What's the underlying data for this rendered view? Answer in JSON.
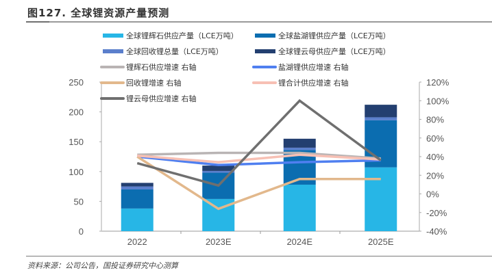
{
  "header": {
    "title": "图127. 全球锂资源产量预测"
  },
  "footer": {
    "source": "资料来源：公司公告，国投证券研究中心测算"
  },
  "chart_data": {
    "type": "bar",
    "title": "图127. 全球锂资源产量预测",
    "categories": [
      "2022",
      "2023E",
      "2024E",
      "2025E"
    ],
    "stacked": true,
    "ylabel": "",
    "ylim": [
      0,
      250
    ],
    "yticks": [
      0,
      50,
      100,
      150,
      200,
      250
    ],
    "y2lim": [
      -40,
      120
    ],
    "y2ticks": [
      "-40%",
      "-20%",
      "0%",
      "20%",
      "40%",
      "60%",
      "80%",
      "100%",
      "120%"
    ],
    "y2tick_values": [
      -40,
      -20,
      0,
      20,
      40,
      60,
      80,
      100,
      120
    ],
    "grid": false,
    "legend_position": "top",
    "bar_series": [
      {
        "name": "全球锂辉石供应产量（LCE万吨）",
        "color": "#27b6e6",
        "values": [
          38,
          54,
          78,
          107
        ]
      },
      {
        "name": "全球盐湖锂供应产量（LCE万吨）",
        "color": "#0b6db0",
        "values": [
          32,
          44,
          58,
          79
        ]
      },
      {
        "name": "全球回收锂总量（LCE万吨）",
        "color": "#5b7fcc",
        "values": [
          5,
          3,
          4,
          5
        ]
      },
      {
        "name": "全球锂云母供应产量（LCE万吨）",
        "color": "#233f70",
        "values": [
          6,
          9,
          15,
          21
        ]
      }
    ],
    "line_series": [
      {
        "name": "锂辉石供应增速 右轴",
        "color": "#b9b4b4",
        "axis": "right",
        "values": [
          42,
          44,
          44,
          38
        ]
      },
      {
        "name": "盐湖锂供应增速 右轴",
        "color": "#4f7ff0",
        "axis": "right",
        "values": [
          40,
          31,
          34,
          36
        ]
      },
      {
        "name": "回收锂增速 右轴",
        "color": "#e2b88c",
        "axis": "right",
        "values": [
          40,
          -16,
          16,
          16
        ]
      },
      {
        "name": "锂合计供应增速 右轴",
        "color": "#f7c0b4",
        "axis": "right",
        "values": [
          41,
          34,
          42,
          37
        ]
      },
      {
        "name": "锂云母供应增速 右轴",
        "color": "#6f6f6f",
        "axis": "right",
        "values": [
          33,
          9,
          100,
          36
        ]
      }
    ],
    "legend_order": [
      {
        "series": "bar",
        "index": 0
      },
      {
        "series": "bar",
        "index": 1
      },
      {
        "series": "bar",
        "index": 2
      },
      {
        "series": "bar",
        "index": 3
      },
      {
        "series": "line",
        "index": 0
      },
      {
        "series": "line",
        "index": 1
      },
      {
        "series": "line",
        "index": 2
      },
      {
        "series": "line",
        "index": 3
      },
      {
        "series": "line",
        "index": 4
      }
    ]
  }
}
